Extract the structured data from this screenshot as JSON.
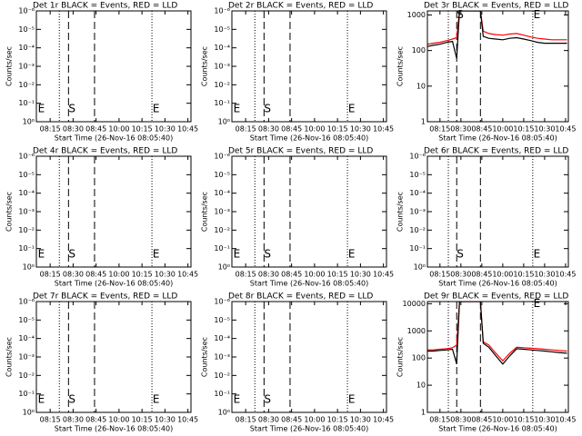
{
  "chart_data": [
    {
      "type": "line",
      "title": "Det 1r BLACK = Events, RED = LLD",
      "xlabel": "Start Time (26-Nov-16 08:05:40)",
      "ylabel": "Counts/sec",
      "log_y": true,
      "xlim": [
        6,
        107
      ],
      "xticks": [
        {
          "value": 15,
          "label": "08:15"
        },
        {
          "value": 30,
          "label": "08:30"
        },
        {
          "value": 45,
          "label": "08:45"
        },
        {
          "value": 60,
          "label": "10:00"
        },
        {
          "value": 75,
          "label": "10:15"
        },
        {
          "value": 90,
          "label": "10:30"
        },
        {
          "value": 105,
          "label": "10:45"
        }
      ],
      "ylim": [
        1,
        1e-06
      ],
      "yticks": [
        {
          "value": 1,
          "label": "10⁰"
        },
        {
          "value": 0.1,
          "label": "10⁻¹"
        },
        {
          "value": 0.01,
          "label": "10⁻²"
        },
        {
          "value": 0.001,
          "label": "10⁻³"
        },
        {
          "value": 0.0001,
          "label": "10⁻⁴"
        },
        {
          "value": 1e-05,
          "label": "10⁻⁵"
        },
        {
          "value": 1e-06,
          "label": "10⁻⁶"
        }
      ],
      "dotted_lines": [
        21,
        81.5
      ],
      "dashed_lines": [
        27,
        44
      ],
      "annotations": [
        {
          "text": "E",
          "x": 7,
          "y": 0.2
        },
        {
          "text": "S",
          "x": 27,
          "y": 0.2
        },
        {
          "text": "E",
          "x": 82,
          "y": 0.2
        }
      ]
    },
    {
      "type": "line",
      "title": "Det 2r BLACK = Events, RED = LLD",
      "xlabel": "Start Time (26-Nov-16 08:05:40)",
      "ylabel": "Counts/sec",
      "log_y": true,
      "xlim": [
        6,
        107
      ],
      "xticks": [
        {
          "value": 15,
          "label": "08:15"
        },
        {
          "value": 30,
          "label": "08:30"
        },
        {
          "value": 45,
          "label": "08:45"
        },
        {
          "value": 60,
          "label": "10:00"
        },
        {
          "value": 75,
          "label": "10:15"
        },
        {
          "value": 90,
          "label": "10:30"
        },
        {
          "value": 105,
          "label": "10:45"
        }
      ],
      "ylim": [
        1,
        1e-06
      ],
      "yticks": [
        {
          "value": 1,
          "label": "10⁰"
        },
        {
          "value": 0.1,
          "label": "10⁻¹"
        },
        {
          "value": 0.01,
          "label": "10⁻²"
        },
        {
          "value": 0.001,
          "label": "10⁻³"
        },
        {
          "value": 0.0001,
          "label": "10⁻⁴"
        },
        {
          "value": 1e-05,
          "label": "10⁻⁵"
        },
        {
          "value": 1e-06,
          "label": "10⁻⁶"
        }
      ],
      "dotted_lines": [
        21,
        81.5
      ],
      "dashed_lines": [
        27,
        44
      ],
      "annotations": [
        {
          "text": "E",
          "x": 7,
          "y": 0.2
        },
        {
          "text": "S",
          "x": 27,
          "y": 0.2
        },
        {
          "text": "E",
          "x": 82,
          "y": 0.2
        }
      ]
    },
    {
      "type": "line",
      "title": "Det 3r BLACK = Events, RED = LLD",
      "xlabel": "Start Time (26-Nov-16 08:05:40)",
      "ylabel": "Counts/sec",
      "log_y": true,
      "xlim": [
        6,
        107
      ],
      "xticks": [
        {
          "value": 15,
          "label": "08:15"
        },
        {
          "value": 30,
          "label": "08:30"
        },
        {
          "value": 45,
          "label": "08:45"
        },
        {
          "value": 60,
          "label": "10:00"
        },
        {
          "value": 75,
          "label": "10:15"
        },
        {
          "value": 90,
          "label": "10:30"
        },
        {
          "value": 105,
          "label": "10:45"
        }
      ],
      "ylim": [
        1,
        1300
      ],
      "yticks": [
        1,
        10,
        100,
        1000
      ],
      "dotted_lines": [
        21,
        81.5
      ],
      "dashed_lines": [
        27,
        44
      ],
      "annotations": [
        {
          "text": "S",
          "x": 27,
          "y": 1000
        },
        {
          "text": "E",
          "x": 82,
          "y": 1000
        }
      ],
      "x": [
        6,
        10,
        15,
        20,
        24,
        27,
        29,
        35,
        44,
        46,
        50,
        55,
        60,
        65,
        70,
        75,
        80,
        85,
        90,
        95,
        100,
        106
      ],
      "series": [
        {
          "color": "#ff0000",
          "values": [
            150,
            160,
            170,
            190,
            210,
            230,
            1300,
            1300,
            1300,
            350,
            300,
            280,
            270,
            290,
            300,
            270,
            240,
            220,
            210,
            200,
            200,
            200
          ]
        },
        {
          "color": "#000000",
          "values": [
            130,
            140,
            150,
            170,
            180,
            60,
            1300,
            1300,
            1300,
            250,
            220,
            210,
            200,
            220,
            230,
            210,
            190,
            170,
            160,
            160,
            160,
            160
          ]
        }
      ]
    },
    {
      "type": "line",
      "title": "Det 4r BLACK = Events, RED = LLD",
      "xlabel": "Start Time (26-Nov-16 08:05:40)",
      "ylabel": "Counts/sec",
      "log_y": true,
      "xlim": [
        6,
        107
      ],
      "xticks": [
        {
          "value": 15,
          "label": "08:15"
        },
        {
          "value": 30,
          "label": "08:30"
        },
        {
          "value": 45,
          "label": "08:45"
        },
        {
          "value": 60,
          "label": "10:00"
        },
        {
          "value": 75,
          "label": "10:15"
        },
        {
          "value": 90,
          "label": "10:30"
        },
        {
          "value": 105,
          "label": "10:45"
        }
      ],
      "ylim": [
        1,
        1e-06
      ],
      "yticks": [
        {
          "value": 1,
          "label": "10⁰"
        },
        {
          "value": 0.1,
          "label": "10⁻¹"
        },
        {
          "value": 0.01,
          "label": "10⁻²"
        },
        {
          "value": 0.001,
          "label": "10⁻³"
        },
        {
          "value": 0.0001,
          "label": "10⁻⁴"
        },
        {
          "value": 1e-05,
          "label": "10⁻⁵"
        },
        {
          "value": 1e-06,
          "label": "10⁻⁶"
        }
      ],
      "dotted_lines": [
        21,
        81.5
      ],
      "dashed_lines": [
        27,
        44
      ],
      "annotations": [
        {
          "text": "E",
          "x": 7,
          "y": 0.2
        },
        {
          "text": "S",
          "x": 27,
          "y": 0.2
        },
        {
          "text": "E",
          "x": 82,
          "y": 0.2
        }
      ]
    },
    {
      "type": "line",
      "title": "Det 5r BLACK = Events, RED = LLD",
      "xlabel": "Start Time (26-Nov-16 08:05:40)",
      "ylabel": "Counts/sec",
      "log_y": true,
      "xlim": [
        6,
        107
      ],
      "xticks": [
        {
          "value": 15,
          "label": "08:15"
        },
        {
          "value": 30,
          "label": "08:30"
        },
        {
          "value": 45,
          "label": "08:45"
        },
        {
          "value": 60,
          "label": "10:00"
        },
        {
          "value": 75,
          "label": "10:15"
        },
        {
          "value": 90,
          "label": "10:30"
        },
        {
          "value": 105,
          "label": "10:45"
        }
      ],
      "ylim": [
        1,
        1e-06
      ],
      "yticks": [
        {
          "value": 1,
          "label": "10⁰"
        },
        {
          "value": 0.1,
          "label": "10⁻¹"
        },
        {
          "value": 0.01,
          "label": "10⁻²"
        },
        {
          "value": 0.001,
          "label": "10⁻³"
        },
        {
          "value": 0.0001,
          "label": "10⁻⁴"
        },
        {
          "value": 1e-05,
          "label": "10⁻⁵"
        },
        {
          "value": 1e-06,
          "label": "10⁻⁶"
        }
      ],
      "dotted_lines": [
        21,
        81.5
      ],
      "dashed_lines": [
        27,
        44
      ],
      "annotations": [
        {
          "text": "E",
          "x": 7,
          "y": 0.2
        },
        {
          "text": "S",
          "x": 27,
          "y": 0.2
        },
        {
          "text": "E",
          "x": 82,
          "y": 0.2
        }
      ]
    },
    {
      "type": "line",
      "title": "Det 6r BLACK = Events, RED = LLD",
      "xlabel": "Start Time (26-Nov-16 08:05:40)",
      "ylabel": "Counts/sec",
      "log_y": true,
      "xlim": [
        6,
        107
      ],
      "xticks": [
        {
          "value": 15,
          "label": "08:15"
        },
        {
          "value": 30,
          "label": "08:30"
        },
        {
          "value": 45,
          "label": "08:45"
        },
        {
          "value": 60,
          "label": "10:00"
        },
        {
          "value": 75,
          "label": "10:15"
        },
        {
          "value": 90,
          "label": "10:30"
        },
        {
          "value": 105,
          "label": "10:45"
        }
      ],
      "ylim": [
        1,
        1e-06
      ],
      "yticks": [
        {
          "value": 1,
          "label": "10⁰"
        },
        {
          "value": 0.1,
          "label": "10⁻¹"
        },
        {
          "value": 0.01,
          "label": "10⁻²"
        },
        {
          "value": 0.001,
          "label": "10⁻³"
        },
        {
          "value": 0.0001,
          "label": "10⁻⁴"
        },
        {
          "value": 1e-05,
          "label": "10⁻⁵"
        },
        {
          "value": 1e-06,
          "label": "10⁻⁶"
        }
      ],
      "dotted_lines": [
        21,
        81.5
      ],
      "dashed_lines": [
        27,
        44
      ],
      "annotations": [
        {
          "text": "S",
          "x": 27,
          "y": 0.2
        },
        {
          "text": "E",
          "x": 82,
          "y": 0.2
        }
      ]
    },
    {
      "type": "line",
      "title": "Det 7r BLACK = Events, RED = LLD",
      "xlabel": "Start Time (26-Nov-16 08:05:40)",
      "ylabel": "Counts/sec",
      "log_y": true,
      "xlim": [
        6,
        107
      ],
      "xticks": [
        {
          "value": 15,
          "label": "08:15"
        },
        {
          "value": 30,
          "label": "08:30"
        },
        {
          "value": 45,
          "label": "08:45"
        },
        {
          "value": 60,
          "label": "10:00"
        },
        {
          "value": 75,
          "label": "10:15"
        },
        {
          "value": 90,
          "label": "10:30"
        },
        {
          "value": 105,
          "label": "10:45"
        }
      ],
      "ylim": [
        1,
        1e-06
      ],
      "yticks": [
        {
          "value": 1,
          "label": "10⁰"
        },
        {
          "value": 0.1,
          "label": "10⁻¹"
        },
        {
          "value": 0.01,
          "label": "10⁻²"
        },
        {
          "value": 0.001,
          "label": "10⁻³"
        },
        {
          "value": 0.0001,
          "label": "10⁻⁴"
        },
        {
          "value": 1e-05,
          "label": "10⁻⁵"
        },
        {
          "value": 1e-06,
          "label": "10⁻⁶"
        }
      ],
      "dotted_lines": [
        21,
        81.5
      ],
      "dashed_lines": [
        27,
        44
      ],
      "annotations": [
        {
          "text": "E",
          "x": 7,
          "y": 0.2
        },
        {
          "text": "S",
          "x": 27,
          "y": 0.2
        },
        {
          "text": "E",
          "x": 82,
          "y": 0.2
        }
      ]
    },
    {
      "type": "line",
      "title": "Det 8r BLACK = Events, RED = LLD",
      "xlabel": "Start Time (26-Nov-16 08:05:40)",
      "ylabel": "Counts/sec",
      "log_y": true,
      "xlim": [
        6,
        107
      ],
      "xticks": [
        {
          "value": 15,
          "label": "08:15"
        },
        {
          "value": 30,
          "label": "08:30"
        },
        {
          "value": 45,
          "label": "08:45"
        },
        {
          "value": 60,
          "label": "10:00"
        },
        {
          "value": 75,
          "label": "10:15"
        },
        {
          "value": 90,
          "label": "10:30"
        },
        {
          "value": 105,
          "label": "10:45"
        }
      ],
      "ylim": [
        1,
        1e-06
      ],
      "yticks": [
        {
          "value": 1,
          "label": "10⁰"
        },
        {
          "value": 0.1,
          "label": "10⁻¹"
        },
        {
          "value": 0.01,
          "label": "10⁻²"
        },
        {
          "value": 0.001,
          "label": "10⁻³"
        },
        {
          "value": 0.0001,
          "label": "10⁻⁴"
        },
        {
          "value": 1e-05,
          "label": "10⁻⁵"
        },
        {
          "value": 1e-06,
          "label": "10⁻⁶"
        }
      ],
      "dotted_lines": [
        21,
        81.5
      ],
      "dashed_lines": [
        27,
        44
      ],
      "annotations": [
        {
          "text": "E",
          "x": 7,
          "y": 0.2
        },
        {
          "text": "S",
          "x": 27,
          "y": 0.2
        },
        {
          "text": "E",
          "x": 82,
          "y": 0.2
        }
      ]
    },
    {
      "type": "line",
      "title": "Det 9r BLACK = Events, RED = LLD",
      "xlabel": "Start Time (26-Nov-16 08:05:40)",
      "ylabel": "Counts/sec",
      "log_y": true,
      "xlim": [
        6,
        107
      ],
      "xticks": [
        {
          "value": 15,
          "label": "08:15"
        },
        {
          "value": 30,
          "label": "08:30"
        },
        {
          "value": 45,
          "label": "08:45"
        },
        {
          "value": 60,
          "label": "10:00"
        },
        {
          "value": 75,
          "label": "10:15"
        },
        {
          "value": 90,
          "label": "10:30"
        },
        {
          "value": 105,
          "label": "10:45"
        }
      ],
      "ylim": [
        1,
        12000
      ],
      "yticks": [
        1,
        10,
        100,
        1000,
        10000
      ],
      "dotted_lines": [
        21,
        81.5
      ],
      "dashed_lines": [
        27,
        44
      ],
      "annotations": [
        {
          "text": "E",
          "x": 82,
          "y": 10000
        }
      ],
      "x": [
        6,
        10,
        15,
        20,
        24,
        27,
        29,
        35,
        44,
        46,
        50,
        55,
        60,
        65,
        70,
        75,
        80,
        85,
        90,
        95,
        100,
        106
      ],
      "series": [
        {
          "color": "#ff0000",
          "values": [
            200,
            200,
            210,
            220,
            240,
            300,
            12000,
            12000,
            12000,
            400,
            300,
            150,
            80,
            150,
            250,
            240,
            230,
            220,
            210,
            200,
            190,
            180
          ]
        },
        {
          "color": "#000000",
          "values": [
            180,
            180,
            190,
            200,
            210,
            60,
            12000,
            12000,
            12000,
            350,
            250,
            120,
            60,
            120,
            220,
            210,
            200,
            190,
            180,
            170,
            160,
            150
          ]
        }
      ]
    }
  ]
}
